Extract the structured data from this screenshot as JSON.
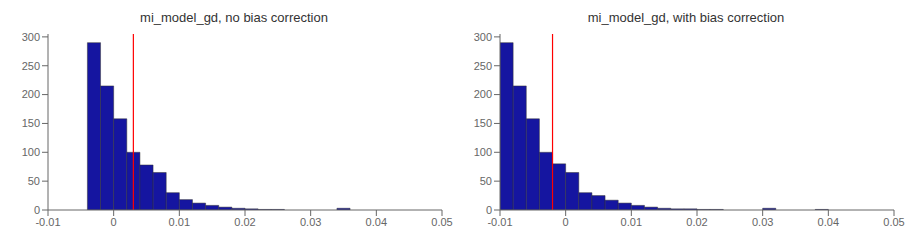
{
  "chart_data": [
    {
      "type": "histogram",
      "title": "mi_model_gd, no bias correction",
      "bins": [
        -0.01,
        -0.008,
        -0.006,
        -0.004,
        -0.002,
        0.0,
        0.002,
        0.004,
        0.006,
        0.008,
        0.01,
        0.012,
        0.014,
        0.016,
        0.018,
        0.02,
        0.022,
        0.024,
        0.026,
        0.028,
        0.03,
        0.032,
        0.034,
        0.036,
        0.038,
        0.04,
        0.042,
        0.044,
        0.046,
        0.048,
        0.05
      ],
      "values": [
        0,
        0,
        0,
        290,
        215,
        158,
        100,
        78,
        65,
        30,
        18,
        12,
        8,
        5,
        3,
        2,
        1,
        1,
        0,
        0,
        0,
        0,
        3,
        0,
        0,
        0,
        0,
        0,
        0,
        0
      ],
      "color": "#1515a0",
      "edge_color": "#333333",
      "vline": {
        "x": 0.003,
        "color": "red"
      },
      "xlim": [
        -0.01,
        0.05
      ],
      "xticks": [
        -0.01,
        0,
        0.01,
        0.02,
        0.03,
        0.04,
        0.05
      ],
      "ylim": [
        0,
        305
      ],
      "yticks": [
        0,
        50,
        100,
        150,
        200,
        250,
        300
      ],
      "grid": false
    },
    {
      "type": "histogram",
      "title": "mi_model_gd, with bias correction",
      "bins": [
        -0.01,
        -0.008,
        -0.006,
        -0.004,
        -0.002,
        0.0,
        0.002,
        0.004,
        0.006,
        0.008,
        0.01,
        0.012,
        0.014,
        0.016,
        0.018,
        0.02,
        0.022,
        0.024,
        0.026,
        0.028,
        0.03,
        0.032,
        0.034,
        0.036,
        0.038,
        0.04,
        0.042,
        0.044,
        0.046,
        0.048,
        0.05
      ],
      "values": [
        290,
        215,
        158,
        100,
        80,
        65,
        30,
        25,
        17,
        12,
        8,
        5,
        3,
        2,
        2,
        1,
        1,
        0,
        0,
        0,
        3,
        0,
        0,
        0,
        1,
        0,
        0,
        0,
        0,
        0
      ],
      "color": "#1515a0",
      "edge_color": "#333333",
      "vline": {
        "x": -0.002,
        "color": "red"
      },
      "xlim": [
        -0.01,
        0.05
      ],
      "xticks": [
        -0.01,
        0,
        0.01,
        0.02,
        0.03,
        0.04,
        0.05
      ],
      "ylim": [
        0,
        305
      ],
      "yticks": [
        0,
        50,
        100,
        150,
        200,
        250,
        300
      ],
      "grid": false
    }
  ]
}
